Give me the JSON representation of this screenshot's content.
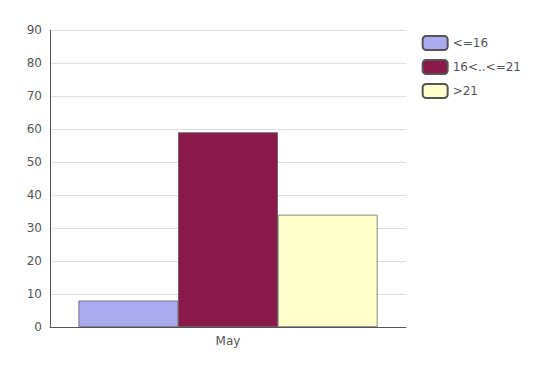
{
  "chart_data": {
    "type": "bar",
    "categories": [
      "May"
    ],
    "series": [
      {
        "name": "<=16",
        "color": "#aaaaee",
        "values": [
          8
        ]
      },
      {
        "name": "16<..<=21",
        "color": "#8b1a4a",
        "values": [
          59
        ]
      },
      {
        "name": ">21",
        "color": "#ffffcc",
        "values": [
          34
        ]
      }
    ],
    "ylim": [
      0,
      90
    ],
    "yticks": [
      0,
      10,
      20,
      30,
      40,
      50,
      60,
      70,
      80,
      90
    ],
    "grid": true,
    "legend": "right"
  }
}
